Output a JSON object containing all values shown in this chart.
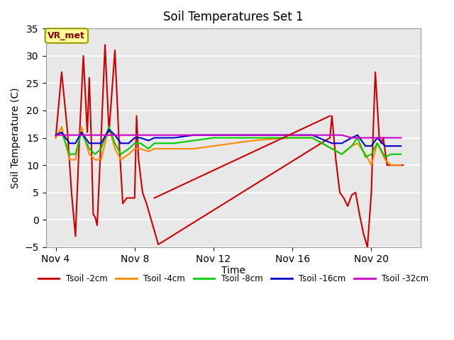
{
  "title": "Soil Temperatures Set 1",
  "xlabel": "Time",
  "ylabel": "Soil Temperature (C)",
  "ylim": [
    -5,
    35
  ],
  "yticks": [
    -5,
    0,
    5,
    10,
    15,
    20,
    25,
    30,
    35
  ],
  "xtick_labels": [
    "Nov 4",
    "Nov 8",
    "Nov 12",
    "Nov 16",
    "Nov 20"
  ],
  "xtick_positions": [
    4,
    8,
    12,
    16,
    20
  ],
  "xlim": [
    3.5,
    22.5
  ],
  "bg_color": "#e8e8e8",
  "annotation_label": "VR_met",
  "series": {
    "Tsoil -2cm": {
      "color": "#cc0000",
      "data_x": [
        4.0,
        4.3,
        4.6,
        4.8,
        5.0,
        5.2,
        5.4,
        5.6,
        5.7,
        5.8,
        5.9,
        6.0,
        6.1,
        6.3,
        6.5,
        6.7,
        7.0,
        7.2,
        7.4,
        7.6,
        7.8,
        8.0,
        8.1,
        8.2,
        8.4,
        8.6,
        8.8,
        9.0,
        9.2,
        17.9,
        18.0,
        18.2,
        18.4,
        18.6,
        18.8,
        19.0,
        19.2,
        19.4,
        19.6,
        19.8,
        20.0,
        20.1,
        20.2,
        20.4,
        20.5,
        20.6,
        20.8,
        21.0,
        21.2,
        21.4,
        21.6
      ],
      "data_y": [
        15,
        27,
        16,
        5,
        -3,
        15,
        30,
        16,
        26,
        15,
        1,
        0.5,
        -1,
        15,
        32,
        16,
        31,
        15,
        3,
        4,
        4,
        4,
        19,
        11,
        5,
        3,
        0.5,
        -2,
        -4.5,
        15,
        19,
        11,
        5,
        4,
        2.5,
        4.5,
        5,
        1,
        -2.5,
        -5,
        5,
        17,
        27,
        15,
        14,
        15,
        10,
        10,
        10,
        10,
        10
      ]
    },
    "Tsoil -4cm": {
      "color": "#ff8800",
      "data_x": [
        4.0,
        4.3,
        4.7,
        5.0,
        5.3,
        5.7,
        6.0,
        6.3,
        6.7,
        7.0,
        7.3,
        7.7,
        8.0,
        8.3,
        8.7,
        9.0,
        9.5,
        10.0,
        11.0,
        12.0,
        13.0,
        14.0,
        15.0,
        16.0,
        17.0,
        18.0,
        18.5,
        19.0,
        19.3,
        19.7,
        20.0,
        20.3,
        20.7,
        21.0,
        21.5
      ],
      "data_y": [
        15,
        17,
        11,
        11,
        17,
        12,
        11,
        11,
        17,
        13,
        11,
        12,
        13,
        13,
        12.5,
        13,
        13,
        13,
        13,
        13.5,
        14,
        14.5,
        14.8,
        15,
        15,
        13,
        12,
        13.5,
        14,
        12,
        10,
        14,
        11,
        10,
        10
      ]
    },
    "Tsoil -8cm": {
      "color": "#00cc00",
      "data_x": [
        4.0,
        4.3,
        4.7,
        5.0,
        5.3,
        5.7,
        6.0,
        6.3,
        6.7,
        7.0,
        7.3,
        7.7,
        8.0,
        8.3,
        8.7,
        9.0,
        9.5,
        10.0,
        11.0,
        12.0,
        13.0,
        14.0,
        15.0,
        16.0,
        17.0,
        18.0,
        18.5,
        19.0,
        19.3,
        19.7,
        20.0,
        20.3,
        20.7,
        21.0,
        21.5
      ],
      "data_y": [
        15.5,
        16,
        12,
        12,
        16,
        13,
        12,
        13,
        17,
        14,
        12,
        13,
        14,
        14,
        13,
        14,
        14,
        14,
        14.5,
        15,
        15,
        15,
        15,
        15,
        15,
        13,
        12,
        13.5,
        15,
        11.5,
        12,
        14,
        11.5,
        12,
        12
      ]
    },
    "Tsoil -16cm": {
      "color": "#0000cc",
      "data_x": [
        4.0,
        4.3,
        4.7,
        5.0,
        5.3,
        5.7,
        6.0,
        6.3,
        6.7,
        7.0,
        7.3,
        7.7,
        8.0,
        8.3,
        8.7,
        9.0,
        9.5,
        10.0,
        11.0,
        12.0,
        13.0,
        14.0,
        15.0,
        16.0,
        17.0,
        18.0,
        18.5,
        19.0,
        19.3,
        19.7,
        20.0,
        20.3,
        20.7,
        21.0,
        21.5
      ],
      "data_y": [
        15.5,
        16,
        14,
        14,
        16,
        14,
        14,
        14,
        16.5,
        15.5,
        14,
        14,
        15,
        15,
        14.5,
        15,
        15,
        15,
        15.5,
        15.5,
        15.5,
        15.5,
        15.5,
        15.5,
        15.5,
        14,
        14,
        15,
        15.5,
        13.5,
        13.5,
        15,
        13.5,
        13.5,
        13.5
      ]
    },
    "Tsoil -32cm": {
      "color": "#cc00cc",
      "data_x": [
        4.0,
        6.0,
        8.0,
        10.0,
        12.0,
        14.0,
        16.0,
        17.0,
        18.0,
        18.5,
        19.0,
        19.5,
        20.0,
        20.5,
        21.0,
        21.5
      ],
      "data_y": [
        15.5,
        15.5,
        15.5,
        15.5,
        15.5,
        15.5,
        15.5,
        15.5,
        15.5,
        15.5,
        15,
        15,
        15,
        15,
        15,
        15
      ]
    }
  },
  "legend_labels": [
    "Tsoil -2cm",
    "Tsoil -4cm",
    "Tsoil -8cm",
    "Tsoil -16cm",
    "Tsoil -32cm"
  ],
  "legend_colors": [
    "#cc0000",
    "#ff8800",
    "#00cc00",
    "#0000cc",
    "#cc00cc"
  ]
}
